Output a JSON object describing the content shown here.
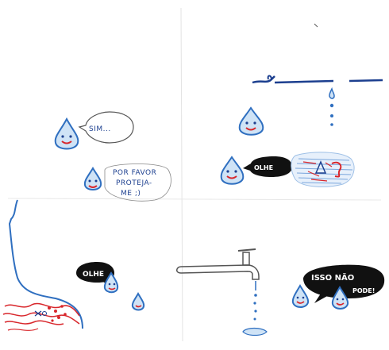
{
  "panels": {
    "top_left": {
      "speech_1": "SIM...",
      "speech_2_lines": [
        "POR FAVOR",
        "PROTEJA-",
        "ME ;)"
      ]
    },
    "top_right": {
      "speech": "OLHE"
    },
    "bottom_left": {
      "speech": "OLHE"
    },
    "bottom_right": {
      "speech_lines": [
        "ISSO NÃO",
        "PODE!"
      ]
    }
  },
  "colors": {
    "ink_blue": "#2f6fc0",
    "dark_blue": "#1c3f8f",
    "red": "#d8262b",
    "black": "#111111",
    "water_light": "#cfe3f6"
  }
}
